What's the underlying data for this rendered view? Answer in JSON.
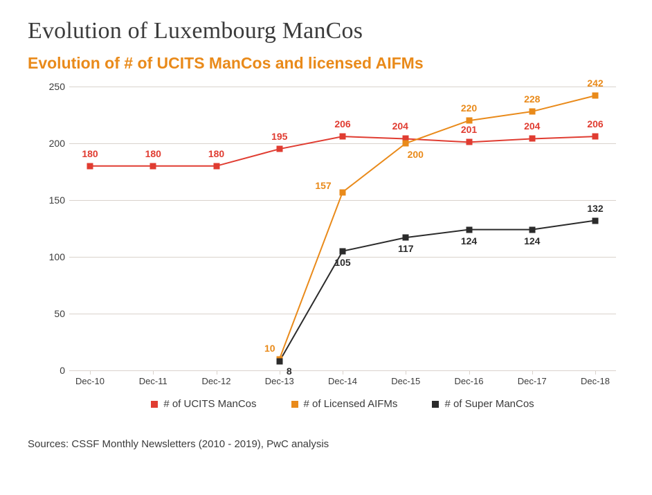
{
  "title": "Evolution of Luxembourg ManCos",
  "subtitle": "Evolution of # of UCITS ManCos and licensed AIFMs",
  "source": "Sources: CSSF Monthly Newsletters (2010 - 2019), PwC analysis",
  "chart": {
    "type": "line",
    "background_color": "#ffffff",
    "grid_color": "#d9d2cc",
    "axis_label_color": "#3b3b3b",
    "axis_fontsize": 14,
    "ylim": [
      0,
      250
    ],
    "ytick_step": 50,
    "categories": [
      "Dec-10",
      "Dec-11",
      "Dec-12",
      "Dec-13",
      "Dec-14",
      "Dec-15",
      "Dec-16",
      "Dec-17",
      "Dec-18"
    ],
    "marker_style": "square",
    "marker_size": 9,
    "line_width": 2,
    "label_fontsize": 14,
    "label_fontweight": "700",
    "legend_position": "bottom",
    "series": [
      {
        "id": "ucits",
        "name": "# of UCITS ManCos",
        "color": "#e03c31",
        "values": [
          180,
          180,
          180,
          195,
          206,
          204,
          201,
          204,
          206
        ],
        "label_offsets": [
          {
            "dx": 0,
            "dy": -10
          },
          {
            "dx": 0,
            "dy": -10
          },
          {
            "dx": 0,
            "dy": -10
          },
          {
            "dx": 0,
            "dy": -10
          },
          {
            "dx": 0,
            "dy": -10
          },
          {
            "dx": -8,
            "dy": -10
          },
          {
            "dx": 0,
            "dy": -10
          },
          {
            "dx": 0,
            "dy": -10
          },
          {
            "dx": 0,
            "dy": -10
          }
        ]
      },
      {
        "id": "aifm",
        "name": "# of Licensed AIFMs",
        "color": "#e98a1a",
        "values": [
          null,
          null,
          null,
          10,
          157,
          200,
          220,
          228,
          242
        ],
        "label_offsets": [
          null,
          null,
          null,
          {
            "dx": -14,
            "dy": -8
          },
          {
            "dx": -28,
            "dy": -2
          },
          {
            "dx": 14,
            "dy": 8,
            "below": true
          },
          {
            "dx": 0,
            "dy": -10
          },
          {
            "dx": 0,
            "dy": -10
          },
          {
            "dx": 0,
            "dy": -10
          }
        ]
      },
      {
        "id": "super",
        "name": "# of Super ManCos",
        "color": "#2b2b2b",
        "values": [
          null,
          null,
          null,
          8,
          105,
          117,
          124,
          124,
          132
        ],
        "label_offsets": [
          null,
          null,
          null,
          {
            "dx": 14,
            "dy": 6,
            "below": true
          },
          {
            "dx": 0,
            "dy": 8,
            "below": true
          },
          {
            "dx": 0,
            "dy": 8,
            "below": true
          },
          {
            "dx": 0,
            "dy": 8,
            "below": true
          },
          {
            "dx": 0,
            "dy": 8,
            "below": true
          },
          {
            "dx": 0,
            "dy": -10
          }
        ]
      }
    ]
  }
}
